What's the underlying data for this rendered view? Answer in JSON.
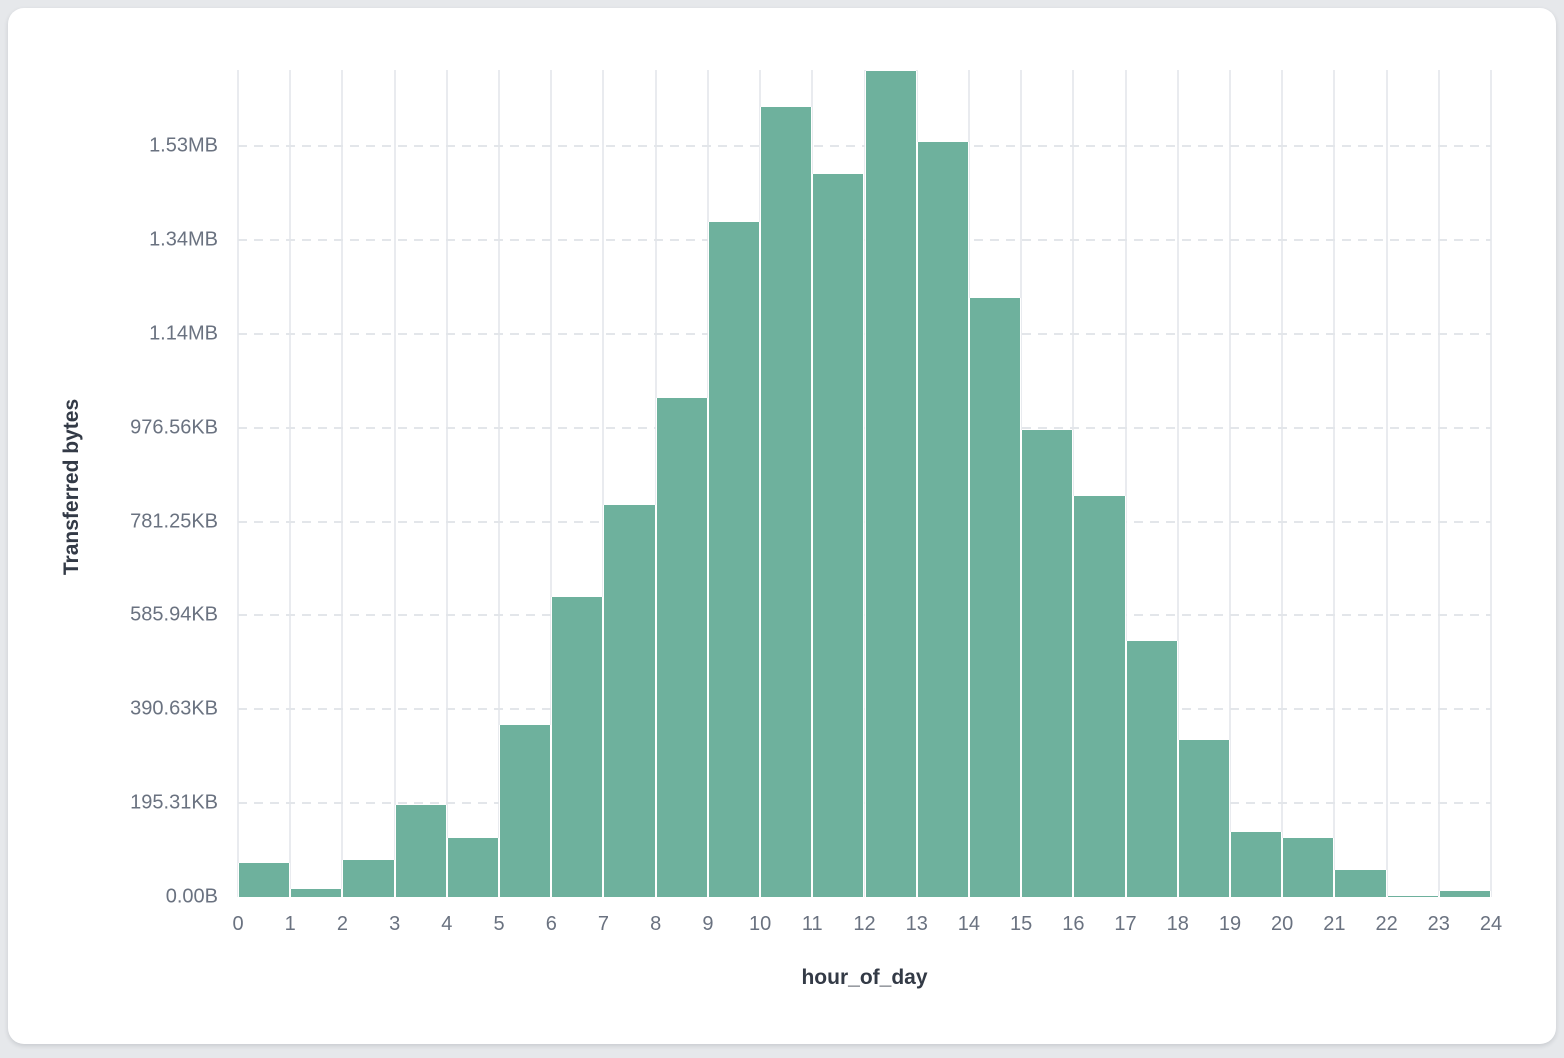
{
  "page": {
    "background_color": "#e6e8eb",
    "card_background_color": "#ffffff"
  },
  "chart_data": {
    "type": "bar",
    "title": "",
    "xlabel": "hour_of_day",
    "ylabel": "Transferred bytes",
    "bar_color": "#6EB19D",
    "grid": true,
    "legend": false,
    "x_tick_labels": [
      "0",
      "1",
      "2",
      "3",
      "4",
      "5",
      "6",
      "7",
      "8",
      "9",
      "10",
      "11",
      "12",
      "13",
      "14",
      "15",
      "16",
      "17",
      "18",
      "19",
      "20",
      "21",
      "22",
      "23",
      "24"
    ],
    "y_ticks": [
      {
        "label": "0.00B",
        "bytes": 0
      },
      {
        "label": "195.31KB",
        "bytes": 200000
      },
      {
        "label": "390.63KB",
        "bytes": 400000
      },
      {
        "label": "585.94KB",
        "bytes": 600000
      },
      {
        "label": "781.25KB",
        "bytes": 800000
      },
      {
        "label": "976.56KB",
        "bytes": 1000000
      },
      {
        "label": "1.14MB",
        "bytes": 1200000
      },
      {
        "label": "1.34MB",
        "bytes": 1400000
      },
      {
        "label": "1.53MB",
        "bytes": 1600000
      }
    ],
    "ylim_bytes": [
      0,
      1762000
    ],
    "xlim_hours": [
      0,
      24
    ],
    "series": [
      {
        "name": "Transferred bytes",
        "bin_start_hours": [
          0,
          1,
          2,
          3,
          4,
          5,
          6,
          7,
          8,
          9,
          10,
          11,
          12,
          13,
          14,
          15,
          16,
          17,
          18,
          19,
          20,
          21,
          22,
          23
        ],
        "values_bytes": [
          73000,
          16500,
          78500,
          197000,
          125000,
          367000,
          640000,
          836000,
          1064000,
          1438000,
          1684000,
          1540000,
          1760000,
          1608000,
          1276000,
          994000,
          854000,
          545000,
          335000,
          139000,
          125000,
          58000,
          2000,
          13000
        ]
      }
    ]
  }
}
